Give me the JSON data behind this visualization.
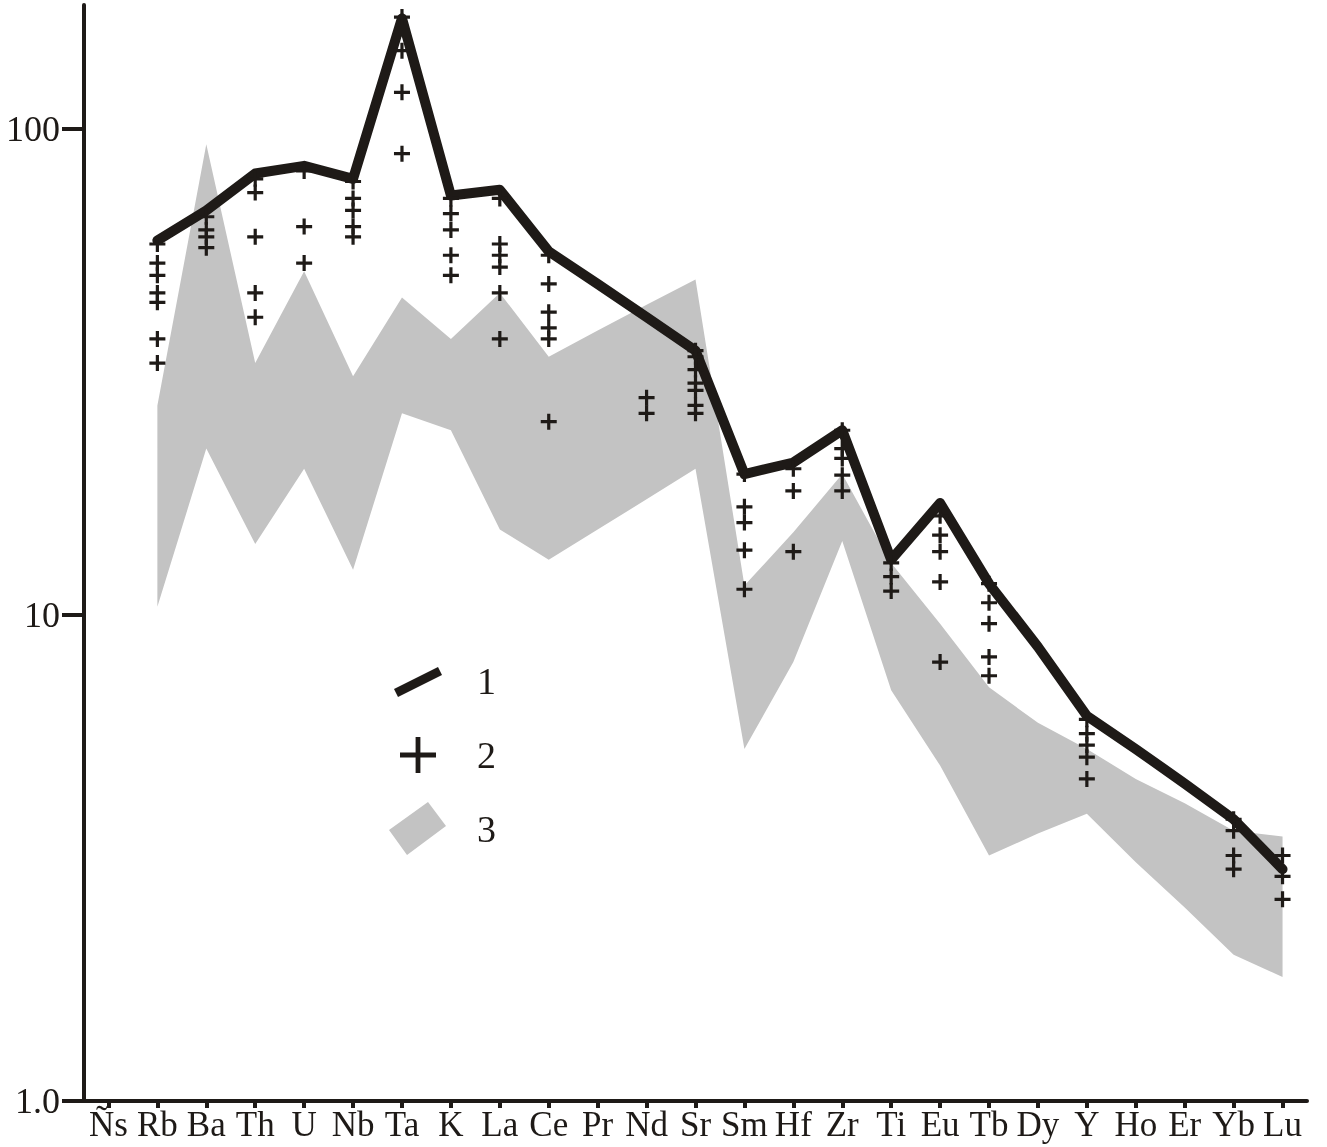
{
  "chart_data": {
    "type": "line",
    "categories": [
      "Ñs",
      "Rb",
      "Ba",
      "Th",
      "U",
      "Nb",
      "Ta",
      "K",
      "La",
      "Ce",
      "Pr",
      "Nd",
      "Sr",
      "Sm",
      "Hf",
      "Zr",
      "Ti",
      "Eu",
      "Tb",
      "Dy",
      "Y",
      "Ho",
      "Er",
      "Yb",
      "Lu"
    ],
    "ylim": [
      1,
      180
    ],
    "yticks": [
      {
        "value": 1,
        "label": "1.0"
      },
      10,
      100
    ],
    "log": true,
    "grid": false,
    "legend": "left",
    "series": [
      {
        "name": "1",
        "type": "line",
        "color": "#1e1a17",
        "marker": "none",
        "values": [
          null,
          59,
          68,
          81,
          84,
          79,
          169,
          73,
          75,
          56,
          48,
          41,
          35,
          19.5,
          20.6,
          24,
          13,
          17,
          11.6,
          8.6,
          6.2,
          5.3,
          4.5,
          3.8,
          3.0
        ]
      },
      {
        "name": "2",
        "type": "scatter",
        "color": "#1e1a17",
        "marker": "cross",
        "x": [
          "Rb",
          "Rb",
          "Rb",
          "Rb",
          "Rb",
          "Rb",
          "Rb",
          "Ba",
          "Ba",
          "Ba",
          "Ba",
          "Th",
          "Th",
          "Th",
          "Th",
          "Th",
          "U",
          "U",
          "U",
          "Nb",
          "Nb",
          "Nb",
          "Nb",
          "Nb",
          "Ta",
          "Ta",
          "Ta",
          "Ta",
          "K",
          "K",
          "K",
          "K",
          "K",
          "La",
          "La",
          "La",
          "La",
          "La",
          "La",
          "Ce",
          "Ce",
          "Ce",
          "Ce",
          "Ce",
          "Ce",
          "Nd",
          "Nd",
          "Sr",
          "Sr",
          "Sr",
          "Sr",
          "Sr",
          "Sr",
          "Sr",
          "Sm",
          "Sm",
          "Sm",
          "Sm",
          "Sm",
          "Hf",
          "Hf",
          "Hf",
          "Zr",
          "Zr",
          "Zr",
          "Zr",
          "Zr",
          "Ti",
          "Ti",
          "Ti",
          "Eu",
          "Eu",
          "Eu",
          "Eu",
          "Eu",
          "Tb",
          "Tb",
          "Tb",
          "Tb",
          "Tb",
          "Y",
          "Y",
          "Y",
          "Y",
          "Y",
          "Yb",
          "Yb",
          "Yb",
          "Yb",
          "Lu",
          "Lu",
          "Lu"
        ],
        "values": [
          58,
          53,
          50,
          46,
          44,
          37,
          33,
          66,
          62,
          60,
          57,
          79,
          74,
          60,
          46,
          41,
          82,
          63,
          53,
          78,
          72,
          68,
          63,
          60,
          170,
          145,
          119,
          89,
          72,
          67,
          62,
          55,
          50,
          72,
          58,
          55,
          52,
          46,
          37,
          55,
          48,
          42,
          39,
          37,
          25,
          28,
          26,
          35,
          34,
          32,
          30,
          29,
          27,
          26,
          19.5,
          16.7,
          15.5,
          13.6,
          11.3,
          20,
          18,
          13.5,
          24,
          22,
          21,
          19.4,
          18,
          12.8,
          12.0,
          11.2,
          16,
          14.6,
          13.5,
          11.7,
          8.0,
          11.6,
          10.6,
          9.6,
          8.2,
          7.5,
          6.1,
          5.7,
          5.4,
          5.1,
          4.6,
          3.8,
          3.6,
          3.2,
          3.0,
          3.2,
          2.9,
          2.6
        ]
      },
      {
        "name": "3",
        "type": "area",
        "color": "#c3c3c3",
        "values": [
          null,
          null,
          null,
          null,
          null,
          null,
          null,
          null,
          null,
          null,
          null,
          null,
          null,
          null,
          null,
          null,
          null,
          null,
          null,
          null,
          null,
          null,
          null,
          null,
          null
        ],
        "upper": [
          null,
          27,
          93,
          33,
          51,
          31,
          45,
          37,
          46,
          34,
          38.5,
          43.5,
          49,
          11.5,
          14.8,
          19.5,
          12.8,
          9.6,
          7.1,
          6.0,
          5.3,
          4.6,
          4.1,
          3.6,
          3.5
        ],
        "lower": [
          null,
          10.4,
          22,
          14,
          20,
          12.4,
          26,
          24,
          15,
          13,
          15,
          17.3,
          20,
          5.3,
          8.0,
          14.2,
          7.0,
          4.9,
          3.2,
          3.55,
          3.9,
          3.1,
          2.5,
          2.0,
          1.8
        ]
      }
    ]
  }
}
